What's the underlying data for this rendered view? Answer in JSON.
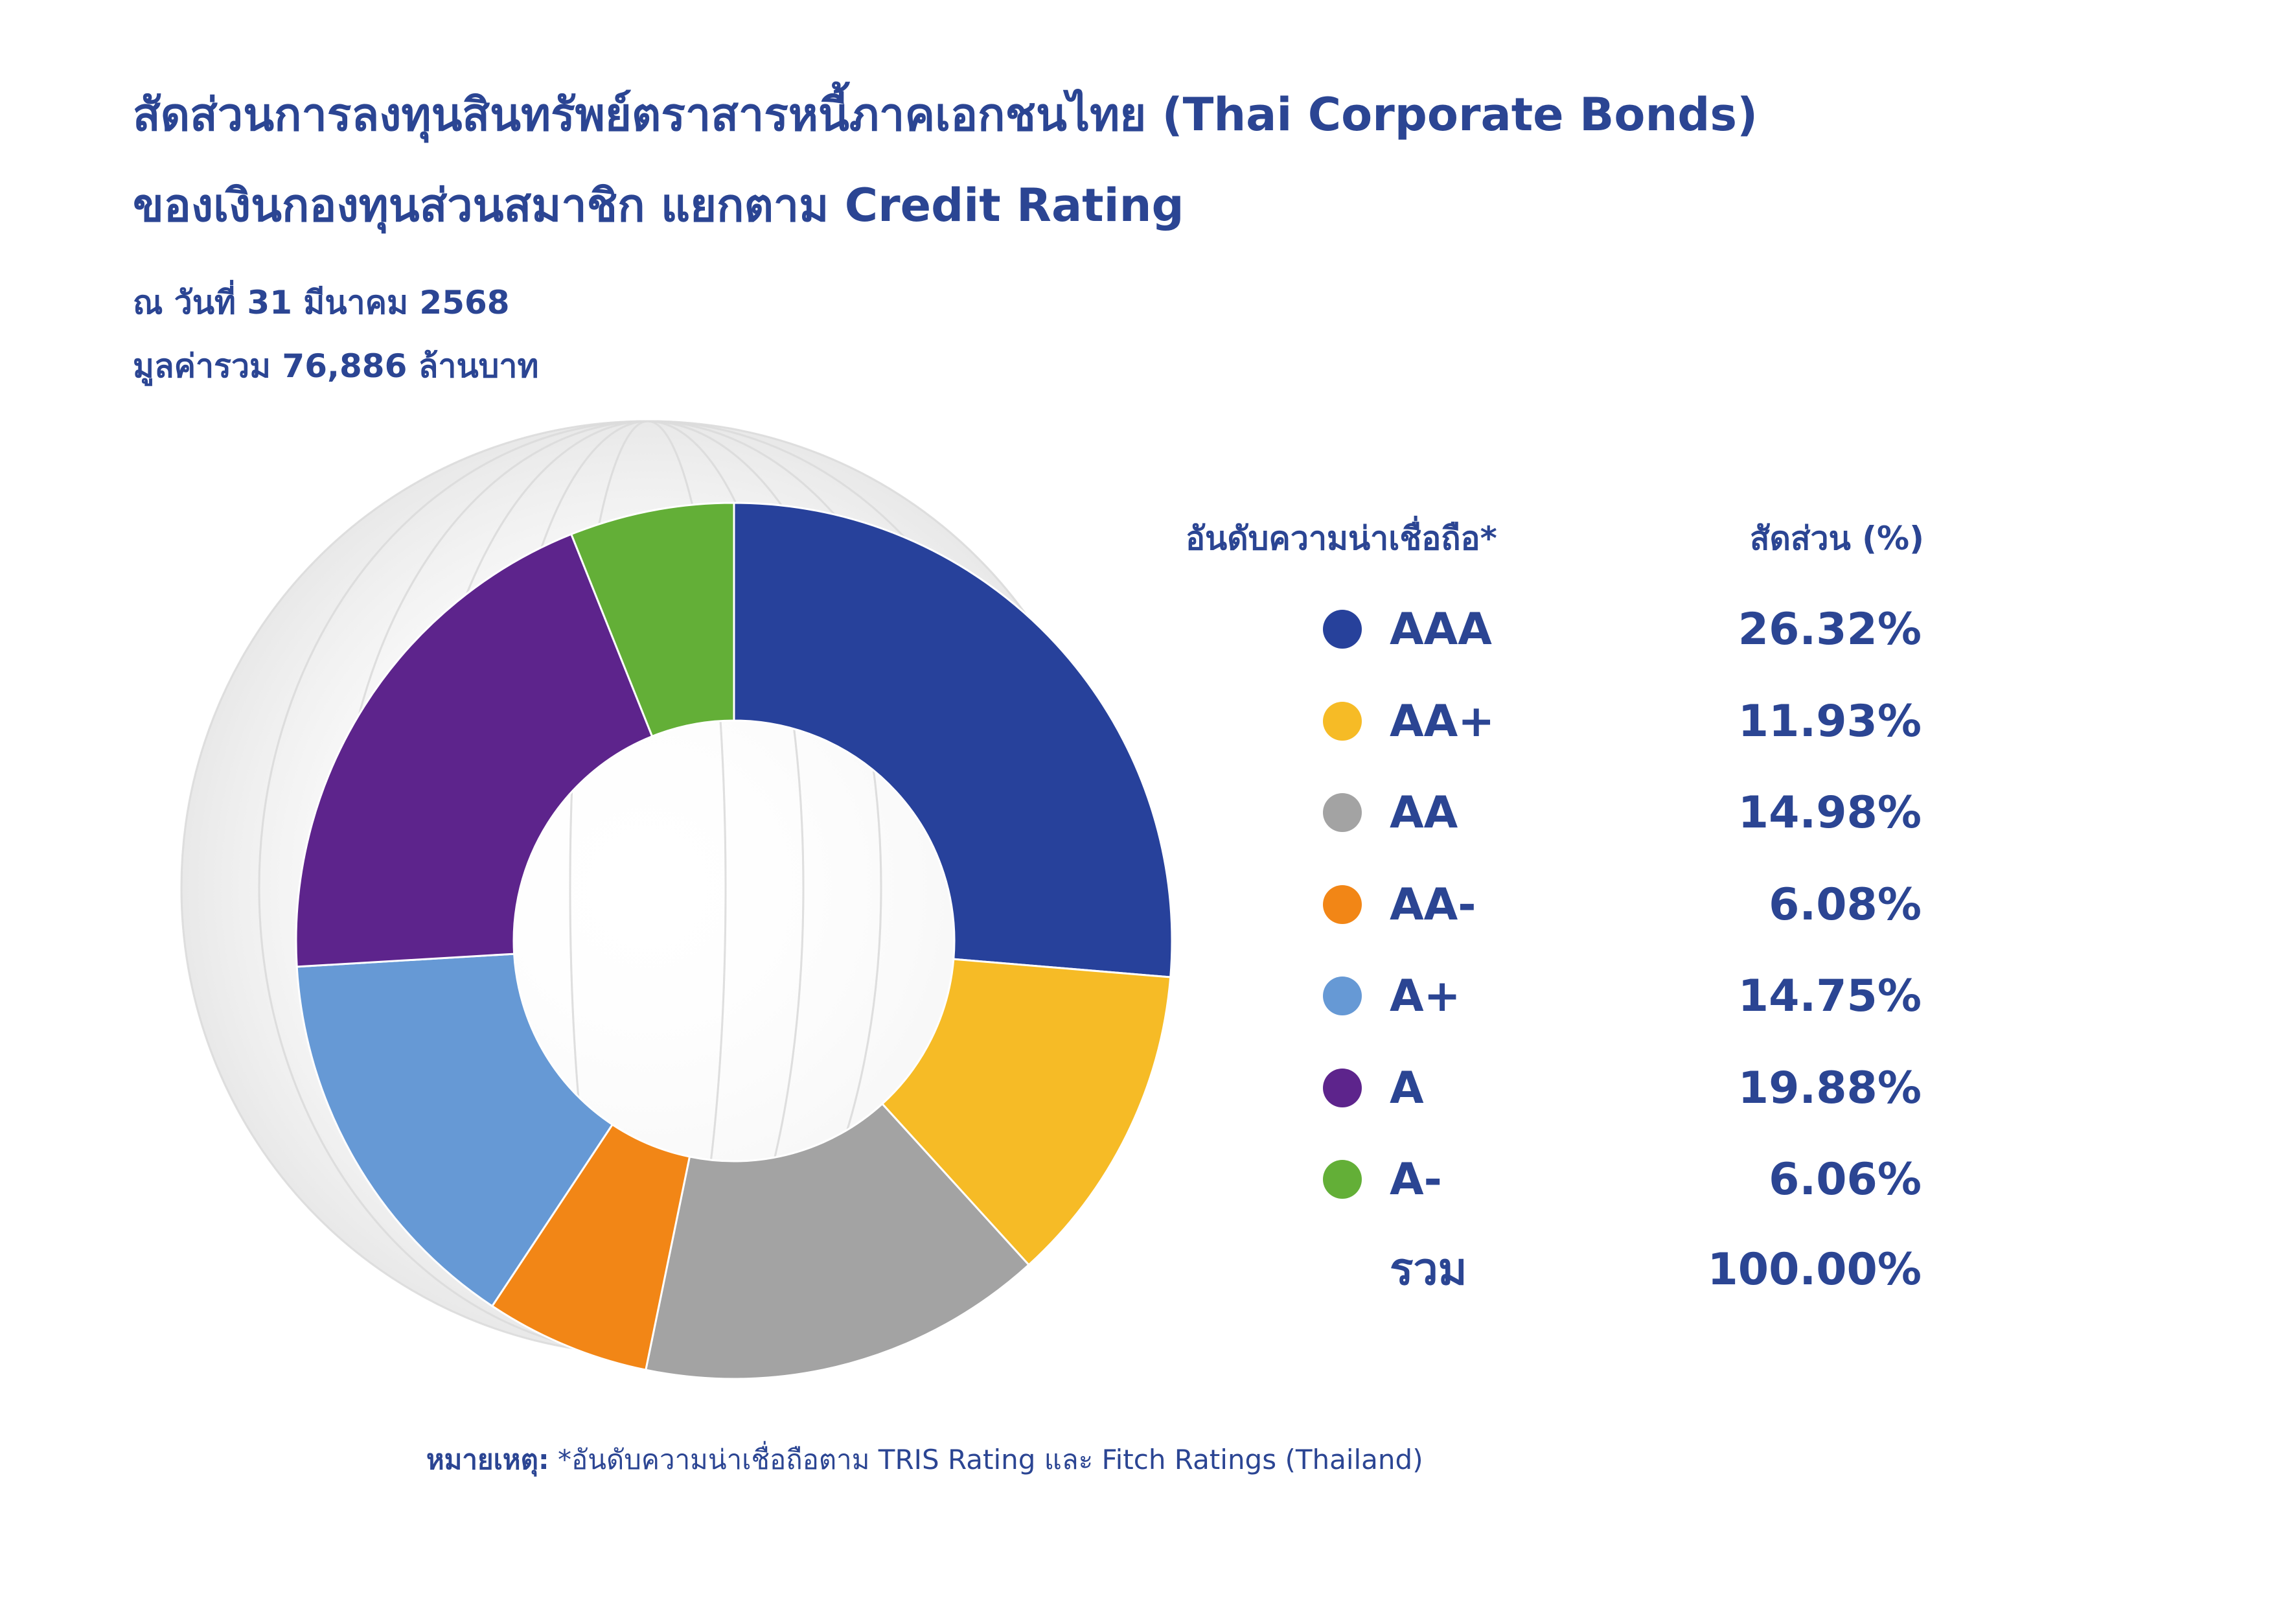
{
  "title_line1": "สัดส่วนการลงทุนสินทรัพย์ตราสารหนี้ภาคเอกชนไทย (Thai Corporate Bonds)",
  "title_line2": "ของเงินกองทุนส่วนสมาชิก แยกตาม Credit Rating",
  "date": "ณ วันที่ 31 มีนาคม 2568",
  "total_value": "มูลค่ารวม 76,886 ล้านบาท",
  "legend": {
    "header_rating": "อันดับความน่าเชื่อถือ*",
    "header_share": "สัดส่วน (%)",
    "total_label": "รวม",
    "total_value": "100.00%"
  },
  "note": {
    "label": "หมายเหตุ:",
    "text": " *อันดับความน่าเชื่อถือตาม TRIS Rating และ Fitch Ratings (Thailand)"
  },
  "chart_data": {
    "type": "pie",
    "style": "donut",
    "start": "12 o'clock, clockwise",
    "categories": [
      "AAA",
      "AA+",
      "AA",
      "AA-",
      "A+",
      "A",
      "A-"
    ],
    "values": [
      26.32,
      11.93,
      14.98,
      6.08,
      14.75,
      19.88,
      6.06
    ],
    "value_labels": [
      "26.32%",
      "11.93%",
      "14.98%",
      "6.08%",
      "14.75%",
      "19.88%",
      "6.06%"
    ],
    "colors": [
      "#27419b",
      "#f6bb26",
      "#a3a3a3",
      "#f28616",
      "#6699d5",
      "#5d248c",
      "#63af37"
    ],
    "legend_position": "right"
  }
}
